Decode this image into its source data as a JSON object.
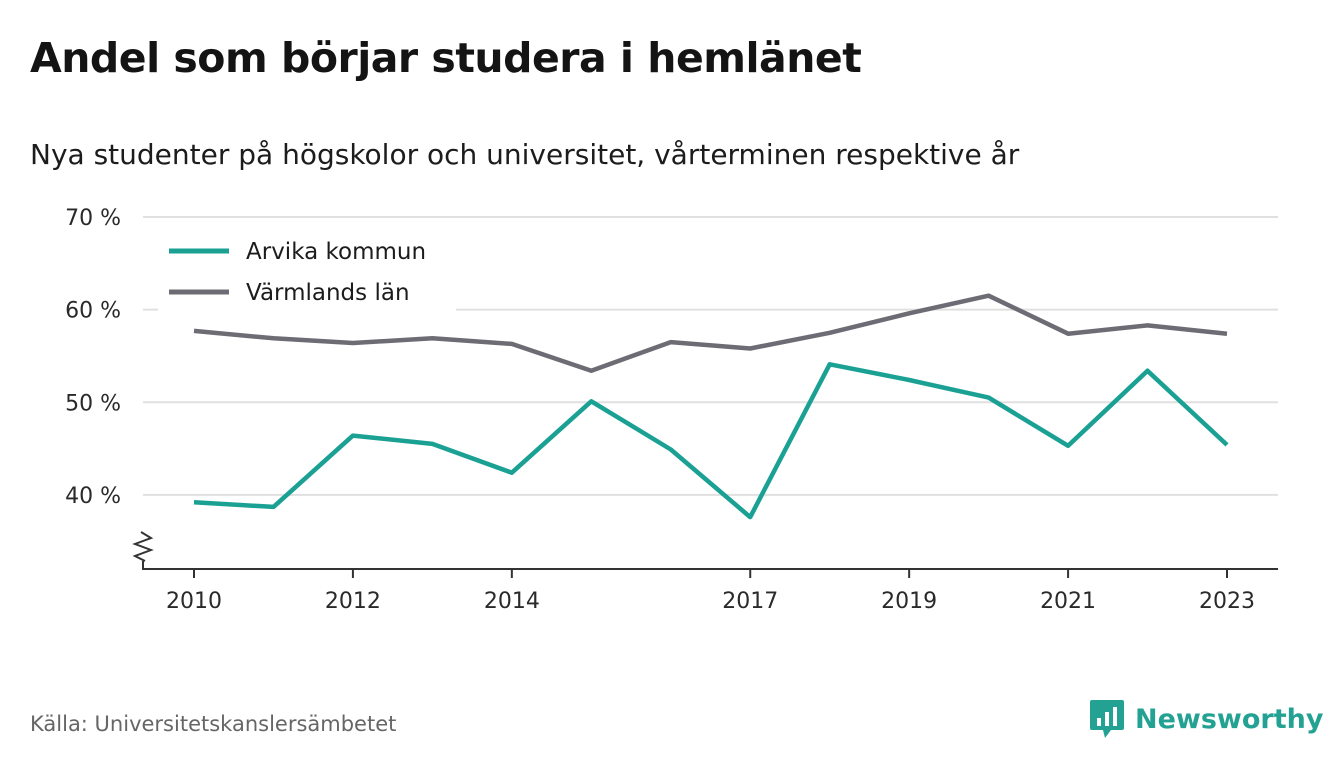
{
  "header": {
    "title": "Andel som börjar studera i hemlänet",
    "subtitle": "Nya studenter på högskolor och universitet, vårterminen respektive år"
  },
  "footer": {
    "source": "Källa: Universitetskanslersämbetet",
    "brand": "Newsworthy"
  },
  "colors": {
    "arvika": "#1aa194",
    "varmland": "#6d6c74",
    "grid": "#e0e0e0",
    "axis": "#333333",
    "brand": "#23a293"
  },
  "icons": {
    "brand_logo": "newsworthy-logo-icon",
    "axis_break": "axis-break-icon"
  },
  "chart_data": {
    "type": "line",
    "title": "Andel som börjar studera i hemlänet",
    "subtitle": "Nya studenter på högskolor och universitet, vårterminen respektive år",
    "x": [
      2010,
      2011,
      2012,
      2013,
      2014,
      2015,
      2016,
      2017,
      2018,
      2019,
      2020,
      2021,
      2022,
      2023
    ],
    "x_tick_values": [
      2010,
      2012,
      2014,
      2017,
      2019,
      2021,
      2023
    ],
    "x_tick_labels": [
      "2010",
      "2012",
      "2014",
      "2017",
      "2019",
      "2021",
      "2023"
    ],
    "y_tick_values": [
      40,
      50,
      60,
      70
    ],
    "y_tick_labels": [
      "40 %",
      "50 %",
      "60 %",
      "70 %"
    ],
    "ylim": [
      32,
      70
    ],
    "y_axis_break": true,
    "grid": true,
    "legend_position": "top-left",
    "series": [
      {
        "name": "Arvika kommun",
        "color": "#1aa194",
        "values": [
          39.2,
          38.7,
          46.4,
          45.5,
          42.4,
          50.1,
          44.9,
          37.6,
          54.1,
          52.4,
          50.5,
          45.3,
          53.4,
          45.4
        ]
      },
      {
        "name": "Värmlands län",
        "color": "#6d6c74",
        "values": [
          57.7,
          56.9,
          56.4,
          56.9,
          56.3,
          53.4,
          56.5,
          55.8,
          57.5,
          59.6,
          61.5,
          57.4,
          58.3,
          57.4
        ]
      }
    ]
  }
}
